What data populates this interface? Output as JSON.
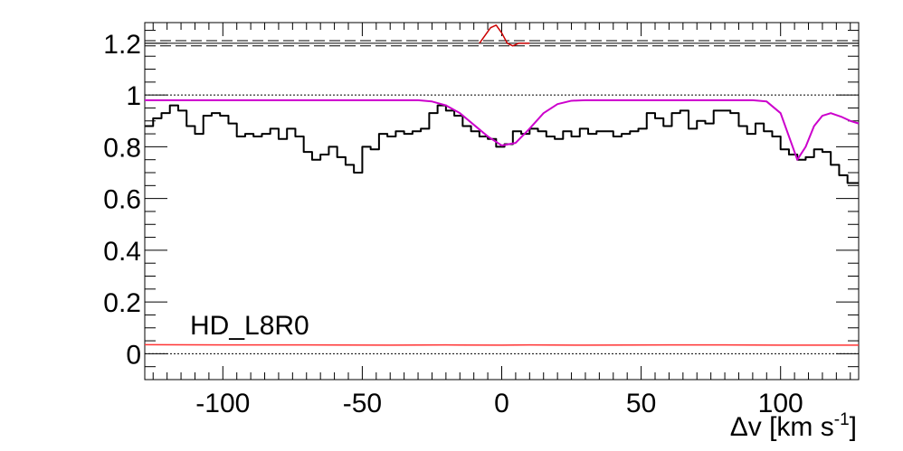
{
  "chart_data": {
    "type": "line",
    "panel_label": "HD_L8R0",
    "xlabel": {
      "main": "Δv [km s",
      "sup": "-1",
      "close": "]"
    },
    "xlim": [
      -128,
      128
    ],
    "ylim": [
      -0.1,
      1.28
    ],
    "x_ticks": [
      -100,
      -50,
      0,
      50,
      100
    ],
    "x_tick_labels": [
      "-100",
      "-50",
      "0",
      "50",
      "100"
    ],
    "y_ticks": [
      0,
      0.2,
      0.4,
      0.6,
      0.8,
      1,
      1.2
    ],
    "y_tick_labels": [
      "0",
      "0.2",
      "0.4",
      "0.6",
      "0.8",
      "1",
      "1.2"
    ],
    "reference_lines": {
      "continuum": 1.0,
      "zero": 0.0,
      "upper_dashed": [
        1.19,
        1.2,
        1.21
      ]
    },
    "colors": {
      "data": "#000000",
      "model": "#cc00cc",
      "error": "#ff3333",
      "residual": "#cc0000",
      "axes": "#000000"
    },
    "series": [
      {
        "key": "flux",
        "style": "step",
        "x": [
          -128,
          -125,
          -122,
          -119,
          -116,
          -113,
          -110,
          -107,
          -104,
          -101,
          -98,
          -95,
          -92,
          -89,
          -86,
          -83,
          -80,
          -77,
          -74,
          -71,
          -68,
          -65,
          -62,
          -59,
          -56,
          -53,
          -50,
          -47,
          -44,
          -41,
          -38,
          -35,
          -32,
          -29,
          -26,
          -23,
          -20,
          -17,
          -14,
          -11,
          -8,
          -5,
          -2,
          1,
          4,
          7,
          10,
          13,
          16,
          19,
          22,
          25,
          28,
          31,
          34,
          37,
          40,
          43,
          46,
          49,
          52,
          55,
          58,
          61,
          64,
          67,
          70,
          73,
          76,
          79,
          82,
          85,
          88,
          91,
          94,
          97,
          100,
          103,
          106,
          109,
          112,
          115,
          118,
          121,
          124
        ],
        "y": [
          0.88,
          0.91,
          0.93,
          0.96,
          0.94,
          0.88,
          0.85,
          0.92,
          0.93,
          0.92,
          0.89,
          0.84,
          0.85,
          0.84,
          0.85,
          0.87,
          0.83,
          0.87,
          0.84,
          0.78,
          0.75,
          0.77,
          0.8,
          0.76,
          0.73,
          0.7,
          0.8,
          0.79,
          0.85,
          0.84,
          0.86,
          0.85,
          0.86,
          0.87,
          0.93,
          0.96,
          0.94,
          0.92,
          0.88,
          0.86,
          0.84,
          0.83,
          0.8,
          0.81,
          0.86,
          0.85,
          0.87,
          0.86,
          0.84,
          0.83,
          0.86,
          0.84,
          0.87,
          0.85,
          0.86,
          0.86,
          0.84,
          0.85,
          0.86,
          0.87,
          0.93,
          0.91,
          0.88,
          0.93,
          0.94,
          0.87,
          0.9,
          0.89,
          0.94,
          0.94,
          0.93,
          0.88,
          0.85,
          0.89,
          0.86,
          0.84,
          0.79,
          0.77,
          0.75,
          0.76,
          0.79,
          0.78,
          0.73,
          0.69,
          0.66
        ],
        "y_end": 0.66
      },
      {
        "key": "model",
        "style": "smooth",
        "x": [
          -128,
          -100,
          -80,
          -60,
          -40,
          -30,
          -25,
          -20,
          -15,
          -10,
          -5,
          0,
          5,
          10,
          15,
          20,
          25,
          30,
          40,
          60,
          80,
          90,
          95,
          100,
          103,
          106,
          109,
          112,
          115,
          118,
          122,
          125,
          128
        ],
        "y": [
          0.98,
          0.98,
          0.98,
          0.98,
          0.98,
          0.98,
          0.975,
          0.96,
          0.93,
          0.885,
          0.84,
          0.805,
          0.815,
          0.87,
          0.93,
          0.965,
          0.978,
          0.98,
          0.98,
          0.98,
          0.98,
          0.98,
          0.975,
          0.93,
          0.84,
          0.75,
          0.8,
          0.88,
          0.92,
          0.93,
          0.915,
          0.9,
          0.89
        ]
      },
      {
        "key": "error",
        "style": "line",
        "x": [
          -128,
          -100,
          -70,
          -40,
          -20,
          0,
          10,
          30,
          60,
          80,
          100,
          128
        ],
        "y": [
          0.035,
          0.034,
          0.034,
          0.033,
          0.034,
          0.033,
          0.034,
          0.033,
          0.034,
          0.034,
          0.033,
          0.033
        ]
      },
      {
        "key": "residual",
        "style": "line",
        "x": [
          -8,
          -6,
          -4,
          -2,
          0,
          2,
          4,
          6,
          8,
          10
        ],
        "y": [
          1.2,
          1.23,
          1.26,
          1.27,
          1.24,
          1.2,
          1.19,
          1.2,
          1.2,
          1.2
        ]
      }
    ]
  }
}
